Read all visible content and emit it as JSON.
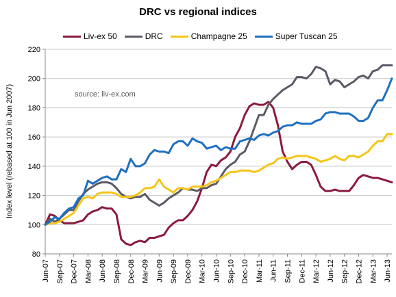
{
  "chart_data": {
    "type": "line",
    "title": "DRC vs regional indices",
    "ylabel": "Index level (rebased at 100 in Jun 2007)",
    "xlabel": "",
    "ylim": [
      80,
      220
    ],
    "yticks": [
      80,
      100,
      120,
      140,
      160,
      180,
      200,
      220
    ],
    "grid": true,
    "legend": "top",
    "annotation": "source: liv-ex.com",
    "x": [
      "Jun-07",
      "Jul-07",
      "Aug-07",
      "Sep-07",
      "Oct-07",
      "Nov-07",
      "Dec-07",
      "Jan-08",
      "Feb-08",
      "Mar-08",
      "Apr-08",
      "May-08",
      "Jun-08",
      "Jul-08",
      "Aug-08",
      "Sep-08",
      "Oct-08",
      "Nov-08",
      "Dec-08",
      "Jan-09",
      "Feb-09",
      "Mar-09",
      "Apr-09",
      "May-09",
      "Jun-09",
      "Jul-09",
      "Aug-09",
      "Sep-09",
      "Oct-09",
      "Nov-09",
      "Dec-09",
      "Jan-10",
      "Feb-10",
      "Mar-10",
      "Apr-10",
      "May-10",
      "Jun-10",
      "Jul-10",
      "Aug-10",
      "Sep-10",
      "Oct-10",
      "Nov-10",
      "Dec-10",
      "Jan-11",
      "Feb-11",
      "Mar-11",
      "Apr-11",
      "May-11",
      "Jun-11",
      "Jul-11",
      "Aug-11",
      "Sep-11",
      "Oct-11",
      "Nov-11",
      "Dec-11",
      "Jan-12",
      "Feb-12",
      "Mar-12",
      "Apr-12",
      "May-12",
      "Jun-12",
      "Jul-12",
      "Aug-12",
      "Sep-12",
      "Oct-12",
      "Nov-12",
      "Dec-12",
      "Jan-13",
      "Feb-13",
      "Mar-13",
      "Apr-13",
      "May-13",
      "Jun-13",
      "Jul-13"
    ],
    "tick_labels": [
      "Jun-07",
      "Sep-07",
      "Dec-07",
      "Mar-08",
      "Jun-08",
      "Sep-08",
      "Dec-08",
      "Mar-09",
      "Jun-09",
      "Sep-09",
      "Dec-09",
      "Mar-10",
      "Jun-10",
      "Sep-10",
      "Dec-10",
      "Mar-11",
      "Jun-11",
      "Sep-11",
      "Dec-11",
      "Mar-12",
      "Jun-12",
      "Sep-12",
      "Dec-12",
      "Mar-13",
      "Jun-13"
    ],
    "series": [
      {
        "name": "Liv-ex 50",
        "color": "#8b1a3d",
        "values": [
          100,
          107,
          106,
          103,
          101,
          101,
          101,
          102,
          103,
          107,
          109,
          110,
          112,
          111,
          111,
          107,
          90,
          87,
          86,
          88,
          89,
          88,
          91,
          91,
          92,
          93,
          98,
          101,
          103,
          103,
          106,
          110,
          116,
          125,
          136,
          141,
          140,
          144,
          146,
          150,
          160,
          166,
          175,
          181,
          183,
          182,
          182,
          184,
          180,
          168,
          150,
          143,
          138,
          141,
          143,
          143,
          141,
          134,
          126,
          123,
          123,
          124,
          123,
          123,
          123,
          127,
          132,
          134,
          133,
          132,
          132,
          131,
          130,
          129
        ]
      },
      {
        "name": "DRC",
        "color": "#5a5a66",
        "values": [
          100,
          104,
          102,
          104,
          107,
          110,
          110,
          116,
          121,
          124,
          126,
          128,
          129,
          129,
          128,
          125,
          121,
          119,
          118,
          119,
          119,
          121,
          117,
          115,
          113,
          115,
          118,
          120,
          122,
          125,
          124,
          124,
          123,
          125,
          125,
          127,
          128,
          133,
          138,
          141,
          143,
          148,
          150,
          157,
          166,
          175,
          175,
          182,
          186,
          189,
          192,
          194,
          196,
          201,
          201,
          200,
          203,
          208,
          207,
          205,
          196,
          199,
          198,
          194,
          196,
          198,
          201,
          202,
          200,
          205,
          206,
          209,
          209,
          209
        ]
      },
      {
        "name": "Champagne 25",
        "color": "#f5c518",
        "values": [
          100,
          101,
          101,
          102,
          104,
          106,
          108,
          113,
          118,
          119,
          118,
          121,
          122,
          122,
          122,
          121,
          119,
          119,
          119,
          120,
          122,
          125,
          125,
          126,
          131,
          126,
          124,
          122,
          125,
          125,
          124,
          126,
          126,
          126,
          127,
          129,
          130,
          132,
          134,
          136,
          136,
          137,
          137,
          137,
          136,
          137,
          139,
          141,
          142,
          145,
          146,
          145,
          146,
          147,
          147,
          147,
          146,
          145,
          143,
          144,
          145,
          147,
          145,
          144,
          147,
          147,
          146,
          148,
          150,
          154,
          157,
          157,
          162,
          162
        ]
      },
      {
        "name": "Super Tuscan 25",
        "color": "#1f6fc0",
        "values": [
          100,
          102,
          105,
          104,
          108,
          111,
          112,
          118,
          120,
          130,
          128,
          130,
          132,
          133,
          131,
          131,
          138,
          136,
          145,
          140,
          140,
          142,
          148,
          151,
          150,
          150,
          149,
          155,
          157,
          157,
          154,
          159,
          157,
          156,
          152,
          153,
          154,
          151,
          153,
          152,
          152,
          157,
          158,
          159,
          158,
          161,
          162,
          161,
          163,
          164,
          167,
          168,
          168,
          170,
          169,
          169,
          169,
          171,
          172,
          176,
          177,
          177,
          176,
          176,
          176,
          174,
          171,
          171,
          173,
          180,
          185,
          185,
          192,
          200
        ]
      }
    ]
  }
}
